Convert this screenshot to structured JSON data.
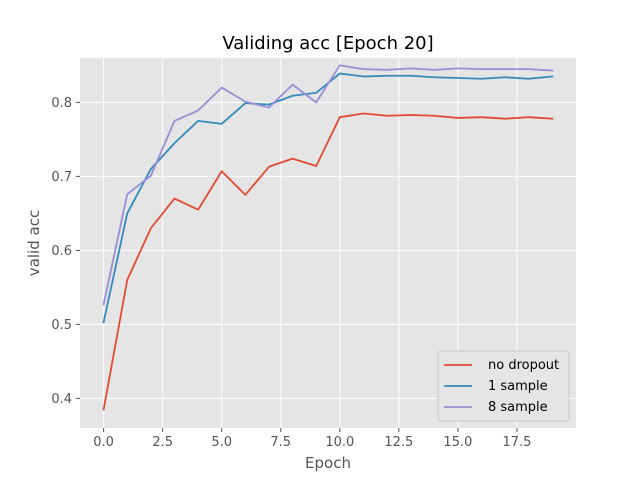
{
  "chart_data": {
    "type": "line",
    "title": "Validing acc [Epoch 20]",
    "xlabel": "Epoch",
    "ylabel": "valid acc",
    "xlim": [
      -1.0,
      20.0
    ],
    "ylim": [
      0.36,
      0.86
    ],
    "xticks": [
      0.0,
      2.5,
      5.0,
      7.5,
      10.0,
      12.5,
      15.0,
      17.5
    ],
    "xtick_labels": [
      "0.0",
      "2.5",
      "5.0",
      "7.5",
      "10.0",
      "12.5",
      "15.0",
      "17.5"
    ],
    "yticks": [
      0.4,
      0.5,
      0.6,
      0.7,
      0.8
    ],
    "ytick_labels": [
      "0.4",
      "0.5",
      "0.6",
      "0.7",
      "0.8"
    ],
    "grid": true,
    "legend_position": "bottom-right",
    "x": [
      0,
      1,
      2,
      3,
      4,
      5,
      6,
      7,
      8,
      9,
      10,
      11,
      12,
      13,
      14,
      15,
      16,
      17,
      18,
      19
    ],
    "series": [
      {
        "name": "no dropout",
        "color": "#E24A33",
        "values": [
          0.385,
          0.56,
          0.63,
          0.67,
          0.655,
          0.707,
          0.675,
          0.713,
          0.724,
          0.714,
          0.78,
          0.785,
          0.782,
          0.783,
          0.782,
          0.779,
          0.78,
          0.778,
          0.78,
          0.778
        ]
      },
      {
        "name": "1 sample",
        "color": "#348ABD",
        "values": [
          0.503,
          0.65,
          0.71,
          0.745,
          0.775,
          0.771,
          0.799,
          0.797,
          0.809,
          0.813,
          0.839,
          0.835,
          0.836,
          0.836,
          0.834,
          0.833,
          0.832,
          0.834,
          0.832,
          0.835
        ]
      },
      {
        "name": "8 sample",
        "color": "#988ED5",
        "values": [
          0.527,
          0.676,
          0.701,
          0.775,
          0.789,
          0.82,
          0.801,
          0.793,
          0.824,
          0.8,
          0.85,
          0.845,
          0.844,
          0.846,
          0.844,
          0.846,
          0.845,
          0.845,
          0.845,
          0.843
        ]
      }
    ]
  }
}
